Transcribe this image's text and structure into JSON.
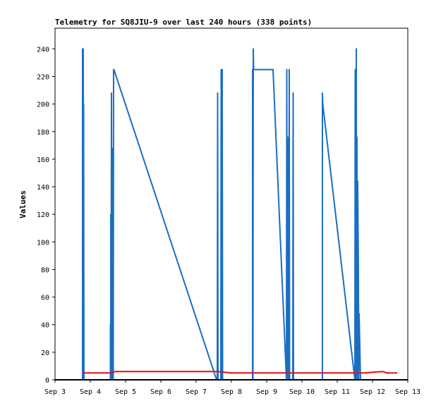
{
  "chart_data": {
    "type": "line",
    "title": "Telemetry for SQ8JIU-9 over last 240 hours (338 points)",
    "xlabel": "",
    "ylabel": "Values",
    "xlim": [
      "Sep 3",
      "Sep 13"
    ],
    "ylim": [
      0,
      255
    ],
    "grid": false,
    "x_ticks": [
      "Sep 3",
      "Sep 4",
      "Sep 5",
      "Sep 6",
      "Sep 7",
      "Sep 8",
      "Sep 9",
      "Sep 10",
      "Sep 11",
      "Sep 12",
      "Sep 13"
    ],
    "y_ticks": [
      0,
      20,
      40,
      60,
      80,
      100,
      120,
      140,
      160,
      180,
      200,
      220,
      240
    ],
    "x_unit": "days after Sep 3 00:00",
    "series": [
      {
        "color": "#1a6ec4",
        "points": [
          [
            0.78,
            0
          ],
          [
            0.78,
            240
          ],
          [
            0.79,
            0
          ],
          [
            0.8,
            240
          ],
          [
            0.81,
            0
          ],
          [
            0.81,
            200
          ],
          [
            0.82,
            0
          ],
          [
            1.57,
            0
          ],
          [
            1.57,
            40
          ],
          [
            1.58,
            0
          ],
          [
            1.58,
            120
          ],
          [
            1.59,
            0
          ],
          [
            1.6,
            208
          ],
          [
            1.61,
            0
          ],
          [
            1.62,
            56
          ],
          [
            1.63,
            0
          ],
          [
            1.64,
            168
          ],
          [
            1.65,
            0
          ],
          [
            1.66,
            225
          ],
          [
            1.67,
            225
          ],
          [
            4.58,
            0
          ],
          [
            4.6,
            0
          ],
          [
            4.61,
            208
          ],
          [
            4.62,
            0
          ],
          [
            4.7,
            0
          ],
          [
            4.71,
            225
          ],
          [
            4.72,
            0
          ],
          [
            4.74,
            225
          ],
          [
            4.75,
            0
          ],
          [
            5.6,
            0
          ],
          [
            5.6,
            225
          ],
          [
            5.61,
            0
          ],
          [
            5.62,
            240
          ],
          [
            5.63,
            225
          ],
          [
            6.18,
            225
          ],
          [
            6.56,
            0
          ],
          [
            6.57,
            225
          ],
          [
            6.58,
            0
          ],
          [
            6.6,
            176
          ],
          [
            6.61,
            0
          ],
          [
            6.62,
            132
          ],
          [
            6.63,
            0
          ],
          [
            6.64,
            225
          ],
          [
            6.65,
            0
          ],
          [
            6.74,
            0
          ],
          [
            6.75,
            208
          ],
          [
            6.76,
            0
          ],
          [
            7.58,
            0
          ],
          [
            7.58,
            208
          ],
          [
            7.59,
            200
          ],
          [
            8.5,
            0
          ],
          [
            8.51,
            225
          ],
          [
            8.52,
            0
          ],
          [
            8.54,
            240
          ],
          [
            8.55,
            0
          ],
          [
            8.56,
            176
          ],
          [
            8.57,
            0
          ],
          [
            8.58,
            144
          ],
          [
            8.6,
            80
          ],
          [
            8.61,
            0
          ],
          [
            8.62,
            48
          ],
          [
            8.64,
            24
          ],
          [
            8.66,
            0
          ]
        ]
      },
      {
        "color": "#e01010",
        "points": [
          [
            0.78,
            5
          ],
          [
            1.6,
            5
          ],
          [
            1.7,
            6
          ],
          [
            4.6,
            6
          ],
          [
            5.0,
            5
          ],
          [
            8.8,
            5
          ],
          [
            9.0,
            5.5
          ],
          [
            9.3,
            6
          ],
          [
            9.4,
            5
          ],
          [
            9.7,
            5
          ]
        ]
      }
    ]
  }
}
